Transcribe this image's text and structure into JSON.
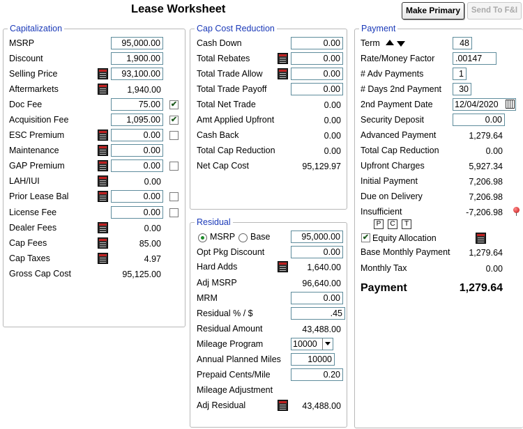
{
  "header": {
    "title": "Lease Worksheet",
    "make_primary_label": "Make Primary",
    "send_label": "Send To F&I"
  },
  "capitalization": {
    "legend": "Capitalization",
    "msrp": {
      "label": "MSRP",
      "value": "95,000.00"
    },
    "discount": {
      "label": "Discount",
      "value": "1,900.00"
    },
    "selling_price": {
      "label": "Selling Price",
      "value": "93,100.00"
    },
    "aftermarkets": {
      "label": "Aftermarkets",
      "value": "1,940.00"
    },
    "doc_fee": {
      "label": "Doc Fee",
      "value": "75.00",
      "checked": true
    },
    "acquisition_fee": {
      "label": "Acquisition Fee",
      "value": "1,095.00",
      "checked": true
    },
    "esc_premium": {
      "label": "ESC Premium",
      "value": "0.00",
      "checked": false
    },
    "maintenance": {
      "label": "Maintenance",
      "value": "0.00"
    },
    "gap_premium": {
      "label": "GAP Premium",
      "value": "0.00",
      "checked": false
    },
    "lah_iui": {
      "label": "LAH/IUI",
      "value": "0.00"
    },
    "prior_lease_bal": {
      "label": "Prior Lease Bal",
      "value": "0.00",
      "checked": false
    },
    "license_fee": {
      "label": "License Fee",
      "value": "0.00",
      "checked": false
    },
    "dealer_fees": {
      "label": "Dealer Fees",
      "value": "0.00"
    },
    "cap_fees": {
      "label": "Cap Fees",
      "value": "85.00"
    },
    "cap_taxes": {
      "label": "Cap Taxes",
      "value": "4.97"
    },
    "gross_cap_cost": {
      "label": "Gross Cap Cost",
      "value": "95,125.00"
    }
  },
  "cap_cost_reduction": {
    "legend": "Cap Cost Reduction",
    "cash_down": {
      "label": "Cash Down",
      "value": "0.00"
    },
    "total_rebates": {
      "label": "Total Rebates",
      "value": "0.00"
    },
    "total_trade_allow": {
      "label": "Total Trade Allow",
      "value": "0.00"
    },
    "total_trade_payoff": {
      "label": "Total Trade Payoff",
      "value": "0.00"
    },
    "total_net_trade": {
      "label": "Total Net Trade",
      "value": "0.00"
    },
    "amt_applied_upfront": {
      "label": "Amt Applied Upfront",
      "value": "0.00"
    },
    "cash_back": {
      "label": "Cash Back",
      "value": "0.00"
    },
    "total_cap_reduction": {
      "label": "Total Cap Reduction",
      "value": "0.00"
    },
    "net_cap_cost": {
      "label": "Net Cap Cost",
      "value": "95,129.97"
    }
  },
  "residual": {
    "legend": "Residual",
    "msrp_radio_label": "MSRP",
    "base_radio_label": "Base",
    "basis_value": "95,000.00",
    "opt_pkg_discount": {
      "label": "Opt Pkg Discount",
      "value": "0.00"
    },
    "hard_adds": {
      "label": "Hard Adds",
      "value": "1,640.00"
    },
    "adj_msrp": {
      "label": "Adj MSRP",
      "value": "96,640.00"
    },
    "mrm": {
      "label": "MRM",
      "value": "0.00"
    },
    "residual_pct": {
      "label": "Residual % / $",
      "value": ".45"
    },
    "residual_amount": {
      "label": "Residual Amount",
      "value": "43,488.00"
    },
    "mileage_program": {
      "label": "Mileage Program",
      "value": "10000"
    },
    "annual_planned_miles": {
      "label": "Annual Planned Miles",
      "value": "10000"
    },
    "prepaid_cents_mile": {
      "label": "Prepaid Cents/Mile",
      "value": "0.20"
    },
    "mileage_adjustment": {
      "label": "Mileage Adjustment",
      "value": ""
    },
    "adj_residual": {
      "label": "Adj Residual",
      "value": "43,488.00"
    }
  },
  "payment": {
    "legend": "Payment",
    "term": {
      "label": "Term",
      "value": "48"
    },
    "rate_money_factor": {
      "label": "Rate/Money Factor",
      "value": ".00147"
    },
    "adv_payments": {
      "label": "# Adv Payments",
      "value": "1"
    },
    "days_2nd_payment": {
      "label": "# Days 2nd Payment",
      "value": "30"
    },
    "second_payment_date": {
      "label": "2nd Payment Date",
      "value": "12/04/2020"
    },
    "security_deposit": {
      "label": "Security Deposit",
      "value": "0.00"
    },
    "advanced_payment": {
      "label": "Advanced Payment",
      "value": "1,279.64"
    },
    "total_cap_reduction": {
      "label": "Total Cap Reduction",
      "value": "0.00"
    },
    "upfront_charges": {
      "label": "Upfront Charges",
      "value": "5,927.34"
    },
    "initial_payment": {
      "label": "Initial Payment",
      "value": "7,206.98"
    },
    "due_on_delivery": {
      "label": "Due on Delivery",
      "value": "7,206.98"
    },
    "insufficient": {
      "label": "Insufficient",
      "value": "-7,206.98"
    },
    "mini_buttons": [
      "P",
      "C",
      "T"
    ],
    "equity_allocation": {
      "label": "Equity Allocation",
      "checked": true
    },
    "base_monthly_payment": {
      "label": "Base Monthly Payment",
      "value": "1,279.64"
    },
    "monthly_tax": {
      "label": "Monthly Tax",
      "value": "0.00"
    },
    "payment_total": {
      "label": "Payment",
      "value": "1,279.64"
    }
  }
}
